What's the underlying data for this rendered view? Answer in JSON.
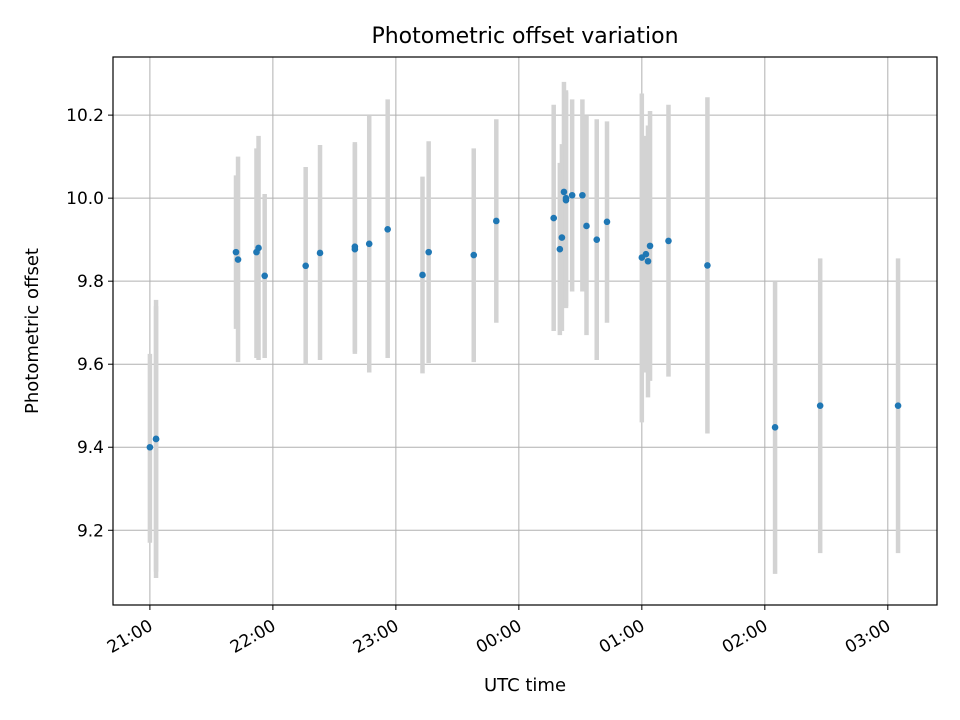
{
  "chart_data": {
    "type": "scatter",
    "title": "Photometric offset variation",
    "xlabel": "UTC time",
    "ylabel": "Photometric offset",
    "grid": true,
    "legend": "none",
    "x_is_time_across_midnight": true,
    "xlim": [
      "20:42",
      "03:24"
    ],
    "ylim": [
      9.02,
      10.34
    ],
    "xticks": [
      "21:00",
      "22:00",
      "23:00",
      "00:00",
      "01:00",
      "02:00",
      "03:00"
    ],
    "yticks": [
      9.2,
      9.4,
      9.6,
      9.8,
      10.0,
      10.2
    ],
    "marker_color": "#1f77b4",
    "errorbar_color": "#d3d3d3",
    "points": [
      {
        "t": "21:00",
        "y": 9.4,
        "lo": 9.17,
        "hi": 9.625
      },
      {
        "t": "21:03",
        "y": 9.42,
        "lo": 9.085,
        "hi": 9.755
      },
      {
        "t": "21:03",
        "y": 9.42,
        "lo": 9.1,
        "hi": 9.74
      },
      {
        "t": "21:42",
        "y": 9.87,
        "lo": 9.685,
        "hi": 10.055
      },
      {
        "t": "21:43",
        "y": 9.852,
        "lo": 9.605,
        "hi": 10.1
      },
      {
        "t": "21:52",
        "y": 9.87,
        "lo": 9.615,
        "hi": 10.12
      },
      {
        "t": "21:53",
        "y": 9.88,
        "lo": 9.61,
        "hi": 10.15
      },
      {
        "t": "21:56",
        "y": 9.813,
        "lo": 9.615,
        "hi": 10.01
      },
      {
        "t": "22:16",
        "y": 9.837,
        "lo": 9.6,
        "hi": 10.075
      },
      {
        "t": "22:23",
        "y": 9.868,
        "lo": 9.61,
        "hi": 10.128
      },
      {
        "t": "22:40",
        "y": 9.883,
        "lo": 9.625,
        "hi": 10.135
      },
      {
        "t": "22:40",
        "y": 9.877,
        "lo": 9.63,
        "hi": 10.13
      },
      {
        "t": "22:47",
        "y": 9.89,
        "lo": 9.58,
        "hi": 10.2
      },
      {
        "t": "22:56",
        "y": 9.925,
        "lo": 9.615,
        "hi": 10.238
      },
      {
        "t": "23:13",
        "y": 9.815,
        "lo": 9.578,
        "hi": 10.052
      },
      {
        "t": "23:16",
        "y": 9.87,
        "lo": 9.603,
        "hi": 10.137
      },
      {
        "t": "23:38",
        "y": 9.863,
        "lo": 9.605,
        "hi": 10.12
      },
      {
        "t": "23:49",
        "y": 9.945,
        "lo": 9.7,
        "hi": 10.19
      },
      {
        "t": "00:17",
        "y": 9.952,
        "lo": 9.68,
        "hi": 10.225
      },
      {
        "t": "00:20",
        "y": 9.877,
        "lo": 9.67,
        "hi": 10.085
      },
      {
        "t": "00:21",
        "y": 9.905,
        "lo": 9.68,
        "hi": 10.13
      },
      {
        "t": "00:22",
        "y": 10.015,
        "lo": 9.75,
        "hi": 10.28
      },
      {
        "t": "00:23",
        "y": 10.0,
        "lo": 9.74,
        "hi": 10.26
      },
      {
        "t": "00:23",
        "y": 9.995,
        "lo": 9.735,
        "hi": 10.255
      },
      {
        "t": "00:26",
        "y": 10.007,
        "lo": 9.775,
        "hi": 10.238
      },
      {
        "t": "00:31",
        "y": 10.007,
        "lo": 9.775,
        "hi": 10.238
      },
      {
        "t": "00:33",
        "y": 9.933,
        "lo": 9.67,
        "hi": 10.198
      },
      {
        "t": "00:38",
        "y": 9.9,
        "lo": 9.61,
        "hi": 10.19
      },
      {
        "t": "00:43",
        "y": 9.943,
        "lo": 9.7,
        "hi": 10.185
      },
      {
        "t": "01:00",
        "y": 9.857,
        "lo": 9.46,
        "hi": 10.252
      },
      {
        "t": "01:02",
        "y": 9.865,
        "lo": 9.58,
        "hi": 10.15
      },
      {
        "t": "01:03",
        "y": 9.848,
        "lo": 9.52,
        "hi": 10.175
      },
      {
        "t": "01:04",
        "y": 9.885,
        "lo": 9.56,
        "hi": 10.21
      },
      {
        "t": "01:13",
        "y": 9.897,
        "lo": 9.57,
        "hi": 10.225
      },
      {
        "t": "01:32",
        "y": 9.838,
        "lo": 9.433,
        "hi": 10.243
      },
      {
        "t": "02:05",
        "y": 9.448,
        "lo": 9.095,
        "hi": 9.8
      },
      {
        "t": "02:27",
        "y": 9.5,
        "lo": 9.145,
        "hi": 9.855
      },
      {
        "t": "03:05",
        "y": 9.5,
        "lo": 9.145,
        "hi": 9.855
      }
    ]
  }
}
